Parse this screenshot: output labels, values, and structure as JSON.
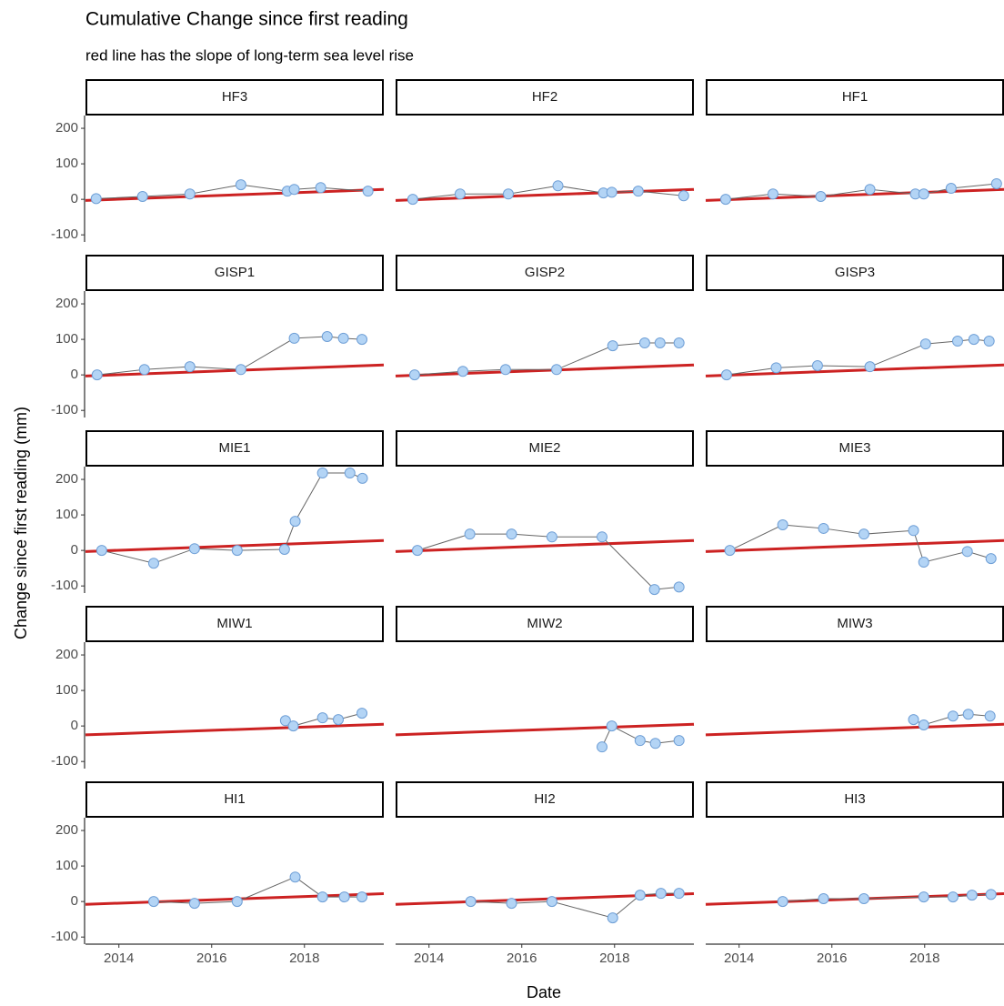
{
  "chart_data": {
    "type": "line",
    "title": "Cumulative Change since first reading",
    "subtitle": "red line has the slope of long-term sea level rise",
    "xlabel": "Date",
    "ylabel": "Change since first reading (mm)",
    "xlim": [
      2013.28,
      2019.71
    ],
    "ylim": [
      -120,
      236
    ],
    "xticks": [
      2014,
      2016,
      2018
    ],
    "yticks": [
      -100,
      0,
      100,
      200
    ],
    "point_color": "#b3d4f5",
    "point_edge_color": "#6f9fd6",
    "line_color": "#666666",
    "trend_color": "#cc2222",
    "panels": [
      {
        "name": "HF3",
        "x": [
          2013.51,
          2014.51,
          2015.53,
          2016.63,
          2017.63,
          2017.78,
          2018.35,
          2019.37
        ],
        "values": [
          2,
          8,
          15,
          41,
          23,
          28,
          33,
          23
        ],
        "trend": {
          "x": [
            2013.28,
            2019.71
          ],
          "values": [
            -3,
            28
          ]
        }
      },
      {
        "name": "HF2",
        "x": [
          2013.65,
          2014.67,
          2015.71,
          2016.78,
          2017.76,
          2017.94,
          2018.51,
          2019.49
        ],
        "values": [
          0,
          15,
          15,
          38,
          18,
          20,
          23,
          10
        ],
        "trend": {
          "x": [
            2013.28,
            2019.71
          ],
          "values": [
            -3,
            28
          ]
        }
      },
      {
        "name": "HF1",
        "x": [
          2013.71,
          2014.73,
          2015.76,
          2016.82,
          2017.8,
          2017.98,
          2018.57,
          2019.55
        ],
        "values": [
          0,
          15,
          8,
          28,
          15,
          15,
          31,
          44
        ],
        "trend": {
          "x": [
            2013.28,
            2019.71
          ],
          "values": [
            -3,
            28
          ]
        }
      },
      {
        "name": "GISP1",
        "x": [
          2013.53,
          2014.55,
          2015.53,
          2016.63,
          2017.78,
          2018.49,
          2018.84,
          2019.24
        ],
        "values": [
          0,
          15,
          23,
          15,
          103,
          108,
          103,
          100
        ],
        "trend": {
          "x": [
            2013.28,
            2019.71
          ],
          "values": [
            -3,
            28
          ]
        }
      },
      {
        "name": "GISP2",
        "x": [
          2013.69,
          2014.73,
          2015.65,
          2016.75,
          2017.96,
          2018.65,
          2018.98,
          2019.39
        ],
        "values": [
          0,
          10,
          15,
          15,
          82,
          90,
          90,
          90
        ],
        "trend": {
          "x": [
            2013.28,
            2019.71
          ],
          "values": [
            -3,
            28
          ]
        }
      },
      {
        "name": "GISP3",
        "x": [
          2013.73,
          2014.8,
          2015.69,
          2016.82,
          2018.02,
          2018.71,
          2019.06,
          2019.39
        ],
        "values": [
          0,
          20,
          26,
          23,
          87,
          95,
          100,
          95
        ],
        "trend": {
          "x": [
            2013.28,
            2019.71
          ],
          "values": [
            -3,
            28
          ]
        }
      },
      {
        "name": "MIE1",
        "x": [
          2013.63,
          2014.75,
          2015.63,
          2016.55,
          2017.57,
          2017.8,
          2018.39,
          2018.98,
          2019.25
        ],
        "values": [
          0,
          -36,
          5,
          0,
          3,
          82,
          218,
          218,
          203
        ],
        "trend": {
          "x": [
            2013.28,
            2019.71
          ],
          "values": [
            -3,
            28
          ]
        }
      },
      {
        "name": "MIE2",
        "x": [
          2013.75,
          2014.88,
          2015.78,
          2016.65,
          2017.73,
          2018.86,
          2019.39
        ],
        "values": [
          0,
          46,
          46,
          38,
          38,
          -110,
          -103
        ],
        "trend": {
          "x": [
            2013.28,
            2019.71
          ],
          "values": [
            -3,
            28
          ]
        }
      },
      {
        "name": "MIE3",
        "x": [
          2013.8,
          2014.94,
          2015.82,
          2016.69,
          2017.76,
          2017.98,
          2018.92,
          2019.43
        ],
        "values": [
          0,
          72,
          62,
          46,
          56,
          -33,
          -3,
          -23
        ],
        "trend": {
          "x": [
            2013.28,
            2019.71
          ],
          "values": [
            -3,
            28
          ]
        }
      },
      {
        "name": "MIW1",
        "x": [
          2017.59,
          2017.76,
          2018.39,
          2018.73,
          2019.24
        ],
        "values": [
          15,
          0,
          23,
          18,
          36
        ],
        "trend": {
          "x": [
            2013.28,
            2019.71
          ],
          "values": [
            -25,
            5
          ]
        }
      },
      {
        "name": "MIW2",
        "x": [
          2017.73,
          2017.94,
          2018.55,
          2018.88,
          2019.39
        ],
        "values": [
          -59,
          0,
          -41,
          -49,
          -41
        ],
        "trend": {
          "x": [
            2013.28,
            2019.71
          ],
          "values": [
            -25,
            5
          ]
        }
      },
      {
        "name": "MIW3",
        "x": [
          2017.76,
          2017.98,
          2018.61,
          2018.94,
          2019.41
        ],
        "values": [
          18,
          3,
          28,
          33,
          28
        ],
        "trend": {
          "x": [
            2013.28,
            2019.71
          ],
          "values": [
            -25,
            5
          ]
        }
      },
      {
        "name": "HI1",
        "x": [
          2014.75,
          2015.63,
          2016.55,
          2017.8,
          2018.39,
          2018.86,
          2019.24
        ],
        "values": [
          0,
          -5,
          0,
          69,
          13,
          13,
          13
        ],
        "trend": {
          "x": [
            2013.28,
            2019.71
          ],
          "values": [
            -8,
            22
          ]
        }
      },
      {
        "name": "HI2",
        "x": [
          2014.9,
          2015.78,
          2016.65,
          2017.96,
          2018.55,
          2019.0,
          2019.39
        ],
        "values": [
          0,
          -5,
          0,
          -46,
          18,
          23,
          23
        ],
        "trend": {
          "x": [
            2013.28,
            2019.71
          ],
          "values": [
            -8,
            22
          ]
        }
      },
      {
        "name": "HI3",
        "x": [
          2014.94,
          2015.82,
          2016.69,
          2017.98,
          2018.61,
          2019.02,
          2019.43
        ],
        "values": [
          0,
          8,
          8,
          13,
          13,
          18,
          20
        ],
        "trend": {
          "x": [
            2013.28,
            2019.71
          ],
          "values": [
            -8,
            22
          ]
        }
      }
    ]
  }
}
